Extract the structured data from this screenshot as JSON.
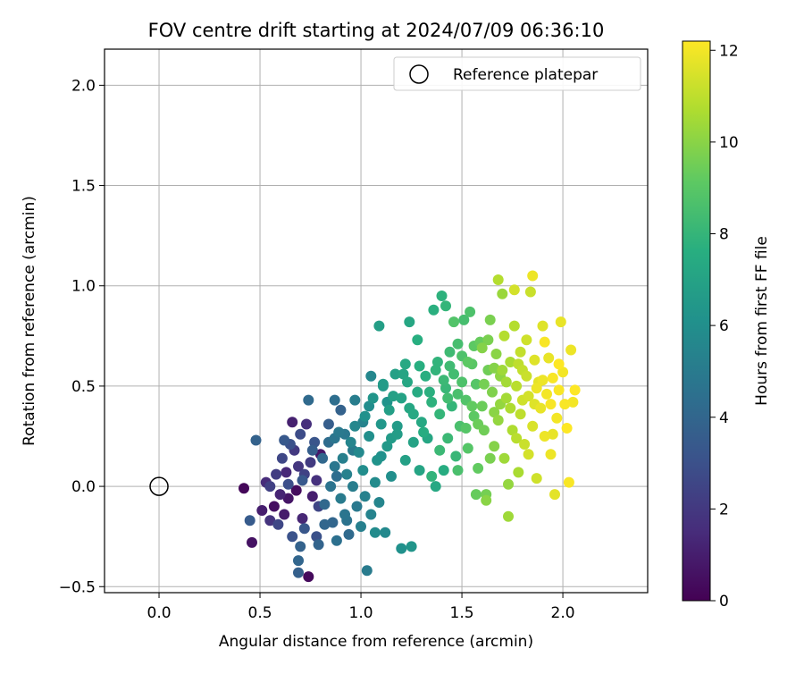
{
  "chart_data": {
    "type": "scatter",
    "title": "FOV centre drift starting at 2024/07/09 06:36:10",
    "xlabel": "Angular distance from reference (arcmin)",
    "ylabel": "Rotation from reference (arcmin)",
    "xlim": [
      -0.27,
      2.42
    ],
    "ylim": [
      -0.53,
      2.18
    ],
    "xticks": [
      0.0,
      0.5,
      1.0,
      1.5,
      2.0
    ],
    "xtick_labels": [
      "0.0",
      "0.5",
      "1.0",
      "1.5",
      "2.0"
    ],
    "yticks": [
      -0.5,
      0.0,
      0.5,
      1.0,
      1.5,
      2.0
    ],
    "ytick_labels": [
      "−0.5",
      "0.0",
      "0.5",
      "1.0",
      "1.5",
      "2.0"
    ],
    "grid": true,
    "legend": {
      "placement": "top-right",
      "entries": [
        "Reference platepar"
      ]
    },
    "reference_point": {
      "x": 0.0,
      "y": 0.0
    },
    "colorbar": {
      "label": "Hours from first FF file",
      "colormap": "viridis",
      "range": [
        0,
        12.2
      ],
      "ticks": [
        0,
        2,
        4,
        6,
        8,
        10,
        12
      ],
      "tick_labels": [
        "0",
        "2",
        "4",
        "6",
        "8",
        "10",
        "12"
      ]
    },
    "series": [
      {
        "columns": [
          "x",
          "y",
          "hours"
        ],
        "points": [
          [
            0.42,
            -0.01,
            0.2
          ],
          [
            0.46,
            -0.28,
            0.6
          ],
          [
            0.51,
            -0.12,
            1.0
          ],
          [
            0.53,
            0.02,
            1.5
          ],
          [
            0.55,
            -0.17,
            1.8
          ],
          [
            0.57,
            -0.1,
            0.5
          ],
          [
            0.58,
            0.06,
            2.2
          ],
          [
            0.6,
            -0.04,
            1.2
          ],
          [
            0.61,
            0.14,
            2.6
          ],
          [
            0.62,
            -0.14,
            0.9
          ],
          [
            0.63,
            0.07,
            1.4
          ],
          [
            0.64,
            -0.06,
            0.7
          ],
          [
            0.65,
            0.21,
            3.0
          ],
          [
            0.66,
            0.32,
            1.1
          ],
          [
            0.67,
            0.18,
            2.0
          ],
          [
            0.68,
            -0.02,
            0.4
          ],
          [
            0.69,
            0.1,
            1.9
          ],
          [
            0.7,
            0.26,
            2.8
          ],
          [
            0.71,
            -0.16,
            1.3
          ],
          [
            0.72,
            0.06,
            2.4
          ],
          [
            0.73,
            0.31,
            1.6
          ],
          [
            0.74,
            -0.45,
            0.3
          ],
          [
            0.75,
            0.12,
            2.1
          ],
          [
            0.76,
            -0.05,
            1.0
          ],
          [
            0.77,
            0.22,
            3.2
          ],
          [
            0.78,
            0.03,
            1.7
          ],
          [
            0.79,
            -0.1,
            2.5
          ],
          [
            0.8,
            0.16,
            0.8
          ],
          [
            0.62,
            0.23,
            3.4
          ],
          [
            0.48,
            0.23,
            3.8
          ],
          [
            0.45,
            -0.17,
            3.5
          ],
          [
            0.7,
            -0.3,
            3.8
          ],
          [
            0.69,
            -0.37,
            4.0
          ],
          [
            0.69,
            -0.43,
            3.7
          ],
          [
            0.74,
            0.43,
            4.2
          ],
          [
            0.84,
            0.31,
            3.6
          ],
          [
            0.9,
            0.38,
            3.8
          ],
          [
            0.87,
            0.43,
            4.4
          ],
          [
            0.78,
            -0.25,
            3.0
          ],
          [
            0.82,
            -0.09,
            4.1
          ],
          [
            0.84,
            0.22,
            4.3
          ],
          [
            0.85,
            0.0,
            4.6
          ],
          [
            0.86,
            -0.18,
            4.0
          ],
          [
            0.87,
            0.1,
            4.8
          ],
          [
            0.88,
            -0.27,
            4.5
          ],
          [
            0.89,
            0.27,
            4.9
          ],
          [
            0.9,
            -0.06,
            5.0
          ],
          [
            0.91,
            0.14,
            5.2
          ],
          [
            0.92,
            -0.14,
            4.7
          ],
          [
            0.93,
            0.06,
            5.3
          ],
          [
            0.94,
            -0.24,
            4.2
          ],
          [
            0.95,
            0.22,
            5.5
          ],
          [
            0.96,
            0.0,
            5.1
          ],
          [
            0.97,
            0.3,
            5.6
          ],
          [
            0.98,
            -0.1,
            4.9
          ],
          [
            0.99,
            0.17,
            5.7
          ],
          [
            1.0,
            -0.2,
            5.2
          ],
          [
            1.01,
            0.08,
            5.9
          ],
          [
            1.02,
            0.35,
            6.1
          ],
          [
            1.03,
            -0.42,
            5.0
          ],
          [
            1.04,
            0.25,
            6.0
          ],
          [
            1.05,
            -0.14,
            5.4
          ],
          [
            1.06,
            0.44,
            6.3
          ],
          [
            1.07,
            0.02,
            5.8
          ],
          [
            1.08,
            0.13,
            6.2
          ],
          [
            1.09,
            -0.08,
            5.5
          ],
          [
            1.1,
            0.31,
            6.4
          ],
          [
            1.11,
            0.51,
            6.6
          ],
          [
            1.12,
            -0.23,
            5.7
          ],
          [
            1.13,
            0.2,
            6.5
          ],
          [
            1.14,
            0.38,
            6.8
          ],
          [
            1.15,
            0.05,
            6.0
          ],
          [
            1.16,
            0.45,
            6.9
          ],
          [
            1.18,
            0.26,
            6.7
          ],
          [
            1.2,
            -0.31,
            6.1
          ],
          [
            1.21,
            0.56,
            7.1
          ],
          [
            1.22,
            0.13,
            6.9
          ],
          [
            1.24,
            0.39,
            7.2
          ],
          [
            1.25,
            -0.3,
            6.3
          ],
          [
            1.26,
            0.22,
            7.0
          ],
          [
            1.28,
            0.47,
            7.4
          ],
          [
            1.29,
            0.08,
            7.1
          ],
          [
            1.3,
            0.32,
            7.3
          ],
          [
            1.32,
            0.55,
            7.6
          ],
          [
            1.33,
            0.24,
            7.2
          ],
          [
            1.35,
            0.42,
            7.8
          ],
          [
            1.36,
            0.88,
            7.7
          ],
          [
            1.37,
            0.0,
            7.3
          ],
          [
            1.38,
            0.62,
            7.9
          ],
          [
            1.39,
            0.36,
            8.0
          ],
          [
            1.4,
            0.95,
            7.8
          ],
          [
            1.41,
            0.08,
            7.5
          ],
          [
            1.42,
            0.49,
            8.1
          ],
          [
            1.43,
            0.24,
            8.2
          ],
          [
            1.44,
            0.67,
            8.3
          ],
          [
            1.45,
            0.4,
            8.0
          ],
          [
            1.46,
            0.56,
            8.4
          ],
          [
            1.47,
            0.15,
            8.1
          ],
          [
            1.48,
            0.71,
            8.5
          ],
          [
            1.49,
            0.3,
            8.6
          ],
          [
            1.5,
            0.52,
            8.7
          ],
          [
            1.51,
            0.83,
            8.5
          ],
          [
            1.52,
            0.43,
            8.8
          ],
          [
            1.53,
            0.19,
            8.9
          ],
          [
            1.54,
            0.87,
            8.7
          ],
          [
            1.55,
            0.61,
            9.0
          ],
          [
            1.56,
            0.35,
            9.1
          ],
          [
            1.57,
            0.51,
            8.9
          ],
          [
            1.58,
            0.09,
            9.2
          ],
          [
            1.59,
            0.72,
            9.3
          ],
          [
            1.6,
            0.4,
            9.4
          ],
          [
            1.61,
            0.28,
            9.5
          ],
          [
            1.62,
            -0.04,
            9.6
          ],
          [
            1.63,
            0.58,
            9.5
          ],
          [
            1.64,
            0.83,
            9.7
          ],
          [
            1.65,
            0.47,
            9.8
          ],
          [
            1.66,
            0.2,
            9.9
          ],
          [
            1.67,
            0.66,
            10.0
          ],
          [
            1.68,
            0.33,
            10.2
          ],
          [
            1.69,
            0.55,
            10.1
          ],
          [
            1.7,
            0.96,
            10.3
          ],
          [
            1.71,
            0.14,
            10.4
          ],
          [
            1.72,
            0.44,
            10.5
          ],
          [
            1.73,
            0.01,
            10.2
          ],
          [
            1.74,
            0.62,
            10.6
          ],
          [
            1.75,
            0.28,
            10.7
          ],
          [
            1.76,
            0.8,
            10.8
          ],
          [
            1.77,
            0.5,
            10.9
          ],
          [
            1.78,
            0.07,
            10.6
          ],
          [
            1.79,
            0.36,
            11.0
          ],
          [
            1.8,
            0.58,
            11.1
          ],
          [
            1.81,
            0.21,
            11.2
          ],
          [
            1.82,
            0.73,
            11.3
          ],
          [
            1.83,
            0.45,
            11.4
          ],
          [
            1.84,
            0.97,
            11.2
          ],
          [
            1.85,
            0.3,
            11.5
          ],
          [
            1.86,
            0.63,
            11.6
          ],
          [
            1.87,
            0.04,
            11.3
          ],
          [
            1.88,
            0.52,
            11.7
          ],
          [
            1.89,
            0.39,
            11.8
          ],
          [
            1.9,
            0.8,
            11.6
          ],
          [
            1.91,
            0.25,
            11.9
          ],
          [
            1.92,
            0.46,
            12.0
          ],
          [
            1.93,
            0.64,
            11.8
          ],
          [
            1.94,
            0.16,
            11.9
          ],
          [
            1.95,
            0.54,
            12.1
          ],
          [
            1.96,
            -0.04,
            11.7
          ],
          [
            1.97,
            0.34,
            12.0
          ],
          [
            1.98,
            0.48,
            12.1
          ],
          [
            1.99,
            0.82,
            11.8
          ],
          [
            2.0,
            0.57,
            12.0
          ],
          [
            2.01,
            0.41,
            12.1
          ],
          [
            2.02,
            0.29,
            12.2
          ],
          [
            2.03,
            0.02,
            12.1
          ],
          [
            2.04,
            0.68,
            11.9
          ],
          [
            2.05,
            0.42,
            12.0
          ],
          [
            2.06,
            0.48,
            12.2
          ],
          [
            1.73,
            -0.15,
            10.4
          ],
          [
            1.62,
            -0.07,
            10.0
          ],
          [
            1.57,
            -0.04,
            9.3
          ],
          [
            1.48,
            0.08,
            8.6
          ],
          [
            1.35,
            0.05,
            7.9
          ],
          [
            1.42,
            0.9,
            8.0
          ],
          [
            1.28,
            0.73,
            7.6
          ],
          [
            1.24,
            0.82,
            7.2
          ],
          [
            1.68,
            1.03,
            10.8
          ],
          [
            1.85,
            1.05,
            11.9
          ],
          [
            1.76,
            0.98,
            11.4
          ],
          [
            0.97,
            0.43,
            5.1
          ],
          [
            1.05,
            0.55,
            5.6
          ],
          [
            1.09,
            0.8,
            6.8
          ],
          [
            1.13,
            0.42,
            6.2
          ],
          [
            1.18,
            0.3,
            6.6
          ],
          [
            1.22,
            0.61,
            7.3
          ],
          [
            1.31,
            0.27,
            7.5
          ],
          [
            1.39,
            0.18,
            8.2
          ],
          [
            1.43,
            0.44,
            8.4
          ],
          [
            1.46,
            0.82,
            8.8
          ],
          [
            1.53,
            0.62,
            9.1
          ],
          [
            1.58,
            0.31,
            9.4
          ],
          [
            1.6,
            0.69,
            9.9
          ],
          [
            1.64,
            0.14,
            9.7
          ],
          [
            1.69,
            0.41,
            10.2
          ],
          [
            1.71,
            0.75,
            10.8
          ],
          [
            1.77,
            0.24,
            10.9
          ],
          [
            1.8,
            0.43,
            11.3
          ],
          [
            1.83,
            0.16,
            11.4
          ],
          [
            1.87,
            0.49,
            11.9
          ],
          [
            1.91,
            0.72,
            12.1
          ],
          [
            1.95,
            0.26,
            11.8
          ],
          [
            1.98,
            0.61,
            12.2
          ],
          [
            0.88,
            0.05,
            4.4
          ],
          [
            0.82,
            -0.19,
            4.0
          ],
          [
            0.79,
            -0.29,
            3.9
          ],
          [
            0.93,
            -0.17,
            4.6
          ],
          [
            1.02,
            -0.05,
            5.3
          ],
          [
            1.07,
            -0.23,
            5.8
          ],
          [
            0.96,
            0.18,
            5.0
          ],
          [
            0.87,
            0.24,
            4.7
          ],
          [
            0.76,
            0.18,
            3.6
          ],
          [
            0.72,
            -0.21,
            3.3
          ],
          [
            0.66,
            -0.25,
            3.1
          ],
          [
            0.59,
            -0.19,
            2.6
          ],
          [
            0.55,
            0.0,
            2.3
          ],
          [
            0.64,
            0.01,
            2.9
          ],
          [
            0.71,
            0.03,
            3.4
          ],
          [
            0.81,
            0.14,
            4.1
          ],
          [
            0.92,
            0.26,
            4.8
          ],
          [
            1.01,
            0.32,
            5.4
          ],
          [
            1.04,
            0.4,
            5.9
          ],
          [
            1.1,
            0.15,
            6.1
          ],
          [
            1.15,
            0.24,
            6.6
          ],
          [
            1.2,
            0.44,
            7.0
          ],
          [
            1.26,
            0.36,
            7.3
          ],
          [
            1.34,
            0.47,
            7.7
          ],
          [
            1.41,
            0.53,
            8.2
          ],
          [
            1.48,
            0.46,
            8.6
          ],
          [
            1.52,
            0.29,
            8.9
          ],
          [
            1.55,
            0.4,
            9.2
          ],
          [
            1.61,
            0.51,
            9.6
          ],
          [
            1.66,
            0.37,
            10.0
          ],
          [
            1.7,
            0.58,
            10.4
          ],
          [
            1.74,
            0.39,
            10.7
          ],
          [
            1.78,
            0.61,
            11.0
          ],
          [
            1.82,
            0.55,
            11.2
          ],
          [
            1.86,
            0.41,
            11.6
          ],
          [
            1.9,
            0.53,
            11.9
          ],
          [
            1.94,
            0.41,
            12.1
          ],
          [
            1.11,
            0.5,
            6.5
          ],
          [
            1.17,
            0.56,
            6.9
          ],
          [
            1.23,
            0.52,
            7.2
          ],
          [
            1.29,
            0.6,
            7.6
          ],
          [
            1.37,
            0.58,
            7.9
          ],
          [
            1.44,
            0.6,
            8.3
          ],
          [
            1.5,
            0.65,
            8.7
          ],
          [
            1.56,
            0.7,
            9.1
          ],
          [
            1.63,
            0.73,
            9.7
          ],
          [
            1.66,
            0.59,
            9.9
          ],
          [
            1.72,
            0.52,
            10.5
          ],
          [
            1.79,
            0.67,
            11.1
          ]
        ]
      }
    ]
  }
}
